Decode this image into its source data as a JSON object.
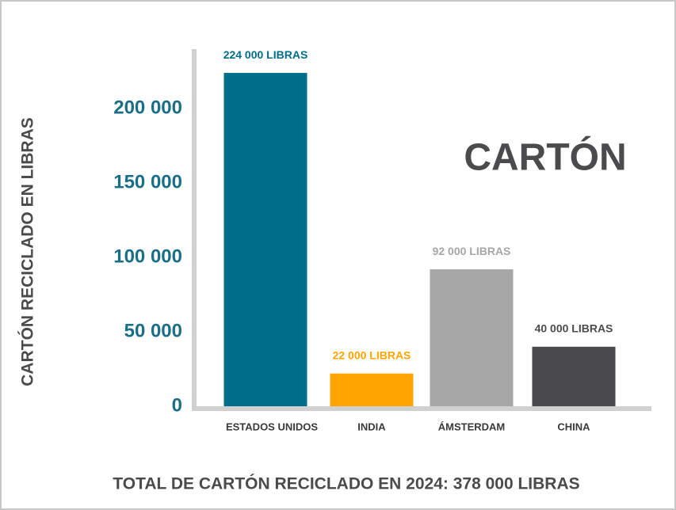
{
  "chart_data": {
    "type": "bar",
    "title": "CARTÓN",
    "y_label": "CARTÓN RECICLADO EN LIBRAS",
    "footer": "TOTAL DE CARTÓN RECICLADO EN 2024: 378 000 LIBRAS",
    "categories": [
      "ESTADOS UNIDOS",
      "INDIA",
      "ÁMSTERDAM",
      "CHINA"
    ],
    "values": [
      224000,
      22000,
      92000,
      40000
    ],
    "value_labels": [
      "224 000 LIBRAS",
      "22 000 LIBRAS",
      "92 000 LIBRAS",
      "40 000 LIBRAS"
    ],
    "colors": [
      "#006e8a",
      "#ffa400",
      "#a6a6a6",
      "#4b4b4d"
    ],
    "ylim": [
      0,
      240000
    ],
    "yticks": [
      {
        "value": 0,
        "label": "0"
      },
      {
        "value": 50000,
        "label": "50 000"
      },
      {
        "value": 100000,
        "label": "100 000"
      },
      {
        "value": 150000,
        "label": "150 000"
      },
      {
        "value": 200000,
        "label": "200 000"
      }
    ],
    "grid": false
  }
}
